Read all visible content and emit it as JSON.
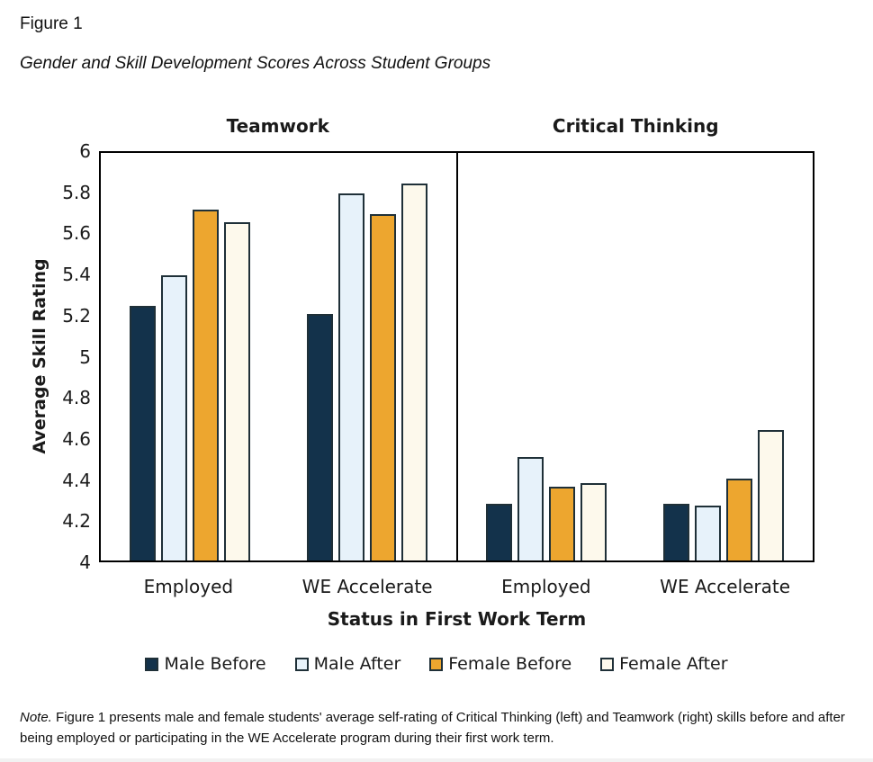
{
  "figure": {
    "label": "Figure 1",
    "title": "Gender and Skill Development Scores Across Student Groups"
  },
  "chart_data": {
    "type": "bar",
    "title": "Gender and Skill Development Scores Across Student Groups",
    "ylabel": "Average Skill Rating",
    "xlabel": "Status in First Work Term",
    "ylim": [
      4,
      6
    ],
    "yticks": [
      4,
      4.2,
      4.4,
      4.6,
      4.8,
      5,
      5.2,
      5.4,
      5.6,
      5.8,
      6
    ],
    "grid": false,
    "legend_position": "bottom",
    "colors": {
      "Male Before": "#13324B",
      "Male After": "#E7F2FA",
      "Female Before": "#EDA62F",
      "Female After": "#FDF9EC",
      "bar_border": "#1F3038"
    },
    "panels": [
      {
        "title": "Teamwork",
        "categories": [
          "Employed",
          "WE Accelerate"
        ],
        "series": [
          {
            "name": "Male Before",
            "values": [
              5.25,
              5.21
            ]
          },
          {
            "name": "Male After",
            "values": [
              5.4,
              5.8
            ]
          },
          {
            "name": "Female Before",
            "values": [
              5.72,
              5.7
            ]
          },
          {
            "name": "Female After",
            "values": [
              5.66,
              5.85
            ]
          }
        ]
      },
      {
        "title": "Critical Thinking",
        "categories": [
          "Employed",
          "WE Accelerate"
        ],
        "series": [
          {
            "name": "Male Before",
            "values": [
              4.28,
              4.28
            ]
          },
          {
            "name": "Male After",
            "values": [
              4.51,
              4.27
            ]
          },
          {
            "name": "Female Before",
            "values": [
              4.36,
              4.4
            ]
          },
          {
            "name": "Female After",
            "values": [
              4.38,
              4.64
            ]
          }
        ]
      }
    ]
  },
  "legend": {
    "items": [
      "Male Before",
      "Male After",
      "Female Before",
      "Female After"
    ]
  },
  "note": {
    "prefix": "Note.",
    "text": " Figure 1 presents male and female students' average self-rating of Critical Thinking (left) and Teamwork (right) skills before and after being employed or participating in the WE Accelerate program during their first work term."
  }
}
